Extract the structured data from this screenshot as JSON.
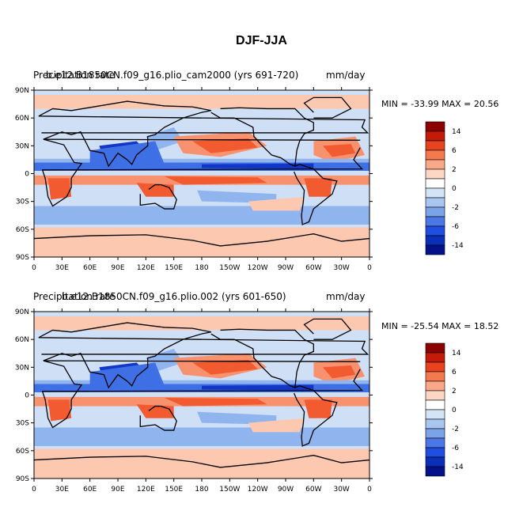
{
  "figure_title": "DJF-JJA",
  "chart_data": [
    {
      "type": "heatmap",
      "title_left": "b.e12.B1850CN.f09_g16.plio_cam2000 (yrs 691-720)",
      "title_overlay": "Precipitation rate",
      "units": "mm/day",
      "stats": "MIN = -33.99 MAX =  20.56",
      "min": -33.99,
      "max": 20.56,
      "lat_ticks": [
        "90N",
        "60N",
        "30N",
        "0",
        "30S",
        "60S",
        "90S"
      ],
      "lon_ticks": [
        "0",
        "30E",
        "60E",
        "90E",
        "120E",
        "150E",
        "180",
        "150W",
        "120W",
        "90W",
        "60W",
        "30W",
        "0"
      ],
      "colorbar_labels": [
        "14",
        "6",
        "2",
        "0",
        "-2",
        "-6",
        "-14"
      ],
      "colorbar_colors": [
        "#8b0000",
        "#c41a0a",
        "#e8431f",
        "#f47a4e",
        "#f9a98a",
        "#fdd7c4",
        "#ffffff",
        "#d4e4f7",
        "#a8c6f0",
        "#7aa3ea",
        "#4b78e6",
        "#1f4ee0",
        "#0b2fb8",
        "#04118a"
      ]
    },
    {
      "type": "heatmap",
      "title_left": "b.e12.B1850CN.f09_g16.plio.002 (yrs 601-650)",
      "title_overlay": "Precipitation rate",
      "units": "mm/day",
      "stats": "MIN = -25.54 MAX =  18.52",
      "min": -25.54,
      "max": 18.52,
      "lat_ticks": [
        "90N",
        "60N",
        "30N",
        "0",
        "30S",
        "60S",
        "90S"
      ],
      "lon_ticks": [
        "0",
        "30E",
        "60E",
        "90E",
        "120E",
        "150E",
        "180",
        "150W",
        "120W",
        "90W",
        "60W",
        "30W",
        "0"
      ],
      "colorbar_labels": [
        "14",
        "6",
        "2",
        "0",
        "-2",
        "-6",
        "-14"
      ],
      "colorbar_colors": [
        "#8b0000",
        "#c41a0a",
        "#e8431f",
        "#f47a4e",
        "#f9a98a",
        "#fdd7c4",
        "#ffffff",
        "#d4e4f7",
        "#a8c6f0",
        "#7aa3ea",
        "#4b78e6",
        "#1f4ee0",
        "#0b2fb8",
        "#04118a"
      ]
    }
  ]
}
